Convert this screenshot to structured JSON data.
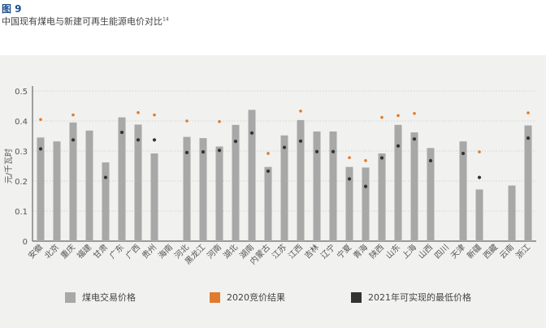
{
  "figure": {
    "label": "图 9",
    "title": "中国现有煤电与新建可再生能源电价对比",
    "title_ref": "14"
  },
  "colors": {
    "bar": "#a8a8a8",
    "auction": "#e07b2e",
    "lowest": "#333333",
    "axis": "#666666",
    "grid": "#c8c8c8",
    "text": "#555555"
  },
  "chart_data": {
    "type": "bar",
    "ylabel": "元/千瓦时",
    "ylim": [
      0,
      0.5
    ],
    "yticks": [
      "0",
      "0.1",
      "0.2",
      "0.3",
      "0.4",
      "0.5"
    ],
    "grid": true,
    "categories": [
      "安徽",
      "北京",
      "重庆",
      "福建",
      "甘肃",
      "广东",
      "广西",
      "贵州",
      "海南",
      "河北",
      "黑龙江",
      "河南",
      "湖北",
      "湖南",
      "内蒙古",
      "江苏",
      "江西",
      "吉林",
      "辽宁",
      "宁夏",
      "青海",
      "陕西",
      "山东",
      "上海",
      "山西",
      "四川",
      "天津",
      "新疆",
      "西藏",
      "云南",
      "浙江"
    ],
    "series": [
      {
        "name": "煤电交易价格",
        "marker": "bar",
        "values": [
          0.345,
          0.332,
          0.395,
          0.368,
          0.262,
          0.412,
          0.388,
          0.292,
          null,
          0.347,
          0.343,
          0.315,
          0.387,
          0.437,
          0.247,
          0.352,
          0.403,
          0.365,
          0.365,
          0.247,
          0.245,
          0.292,
          0.387,
          0.362,
          0.31,
          null,
          0.332,
          0.172,
          null,
          0.185,
          0.385
        ]
      },
      {
        "name": "2020竞价结果",
        "marker": "dot",
        "values": [
          0.405,
          null,
          0.42,
          null,
          null,
          null,
          0.428,
          0.42,
          null,
          0.4,
          null,
          0.398,
          null,
          null,
          0.292,
          null,
          0.433,
          null,
          null,
          0.278,
          0.268,
          0.412,
          0.418,
          0.425,
          null,
          null,
          null,
          0.297,
          null,
          null,
          0.427
        ]
      },
      {
        "name": "2021年可实现的最低价格",
        "marker": "dot",
        "values": [
          0.307,
          null,
          0.337,
          null,
          0.212,
          0.362,
          0.337,
          0.337,
          null,
          0.295,
          0.297,
          0.302,
          0.332,
          0.36,
          0.233,
          0.312,
          0.333,
          0.298,
          0.298,
          0.207,
          0.182,
          0.277,
          0.317,
          0.34,
          0.268,
          null,
          0.292,
          0.212,
          null,
          null,
          0.343
        ]
      }
    ]
  }
}
